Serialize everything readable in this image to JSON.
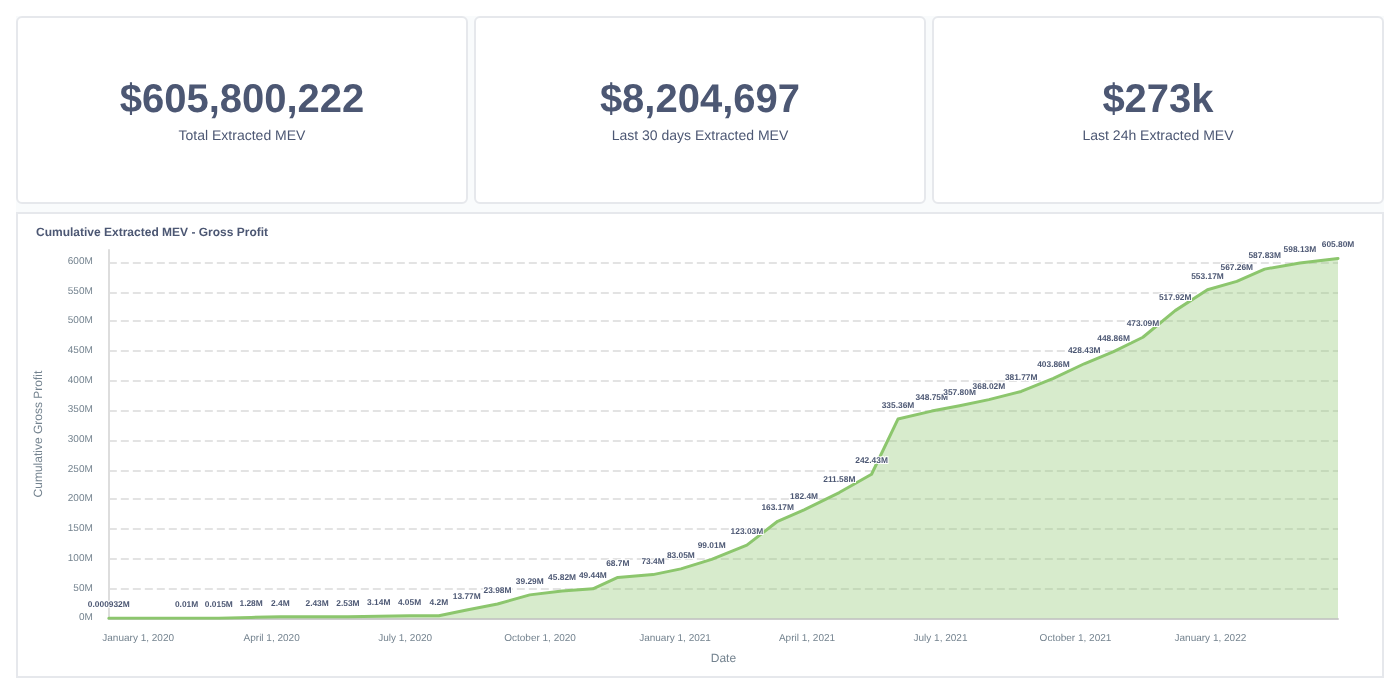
{
  "chart_data": [
    {
      "type": "other",
      "title": "$605,800,222",
      "subtitle": "Total Extracted MEV"
    },
    {
      "type": "other",
      "title": "$8,204,697",
      "subtitle": "Last 30 days Extracted MEV"
    },
    {
      "type": "other",
      "title": "$273k",
      "subtitle": "Last 24h Extracted MEV"
    },
    {
      "type": "area",
      "title": "Cumulative Extracted MEV - Gross Profit",
      "xlabel": "Date",
      "ylabel": "Cumulative Gross Profit",
      "x": [
        "2019-12-12",
        "2020-02-03",
        "2020-02-25",
        "2020-03-18",
        "2020-04-07",
        "2020-05-02",
        "2020-05-23",
        "2020-06-13",
        "2020-07-04",
        "2020-07-24",
        "2020-08-12",
        "2020-09-02",
        "2020-09-24",
        "2020-10-16",
        "2020-11-06",
        "2020-11-23",
        "2020-12-17",
        "2021-01-05",
        "2021-01-26",
        "2021-02-19",
        "2021-03-12",
        "2021-03-30",
        "2021-04-23",
        "2021-05-15",
        "2021-06-02",
        "2021-06-25",
        "2021-07-14",
        "2021-08-03",
        "2021-08-25",
        "2021-09-16",
        "2021-10-07",
        "2021-10-27",
        "2021-11-16",
        "2021-12-08",
        "2021-12-30",
        "2022-01-19",
        "2022-02-07",
        "2022-03-03",
        "2022-03-29"
      ],
      "series": [
        {
          "color": "#8cc66d",
          "values": [
            0.000932,
            0.01,
            0.015,
            1.28,
            2.4,
            2.43,
            2.53,
            3.14,
            4.05,
            4.2,
            13.77,
            23.98,
            39.29,
            45.82,
            49.44,
            68.7,
            73.4,
            83.05,
            99.01,
            123.03,
            163.17,
            182.4,
            211.58,
            242.43,
            335.36,
            348.75,
            357.8,
            368.02,
            381.77,
            403.86,
            428.43,
            448.86,
            473.09,
            517.92,
            553.17,
            567.26,
            587.83,
            598.13,
            605.8
          ],
          "value_labels": [
            "0.000932M",
            "0.01M",
            "0.015M",
            "1.28M",
            "2.4M",
            "2.43M",
            "2.53M",
            "3.14M",
            "4.05M",
            "4.2M",
            "13.77M",
            "23.98M",
            "39.29M",
            "45.82M",
            "49.44M",
            "68.7M",
            "73.4M",
            "83.05M",
            "99.01M",
            "123.03M",
            "163.17M",
            "182.4M",
            "211.58M",
            "242.43M",
            "335.36M",
            "348.75M",
            "357.80M",
            "368.02M",
            "381.77M",
            "403.86M",
            "428.43M",
            "448.86M",
            "473.09M",
            "517.92M",
            "553.17M",
            "567.26M",
            "587.83M",
            "598.13M",
            "605.80M"
          ]
        }
      ],
      "xlim": [
        "2019-12-12",
        "2022-03-29"
      ],
      "xticks": [
        {
          "value": "2020-01-01",
          "label": "January 1, 2020"
        },
        {
          "value": "2020-04-01",
          "label": "April 1, 2020"
        },
        {
          "value": "2020-07-01",
          "label": "July 1, 2020"
        },
        {
          "value": "2020-10-01",
          "label": "October 1, 2020"
        },
        {
          "value": "2021-01-01",
          "label": "January 1, 2021"
        },
        {
          "value": "2021-04-01",
          "label": "April 1, 2021"
        },
        {
          "value": "2021-07-01",
          "label": "July 1, 2021"
        },
        {
          "value": "2021-10-01",
          "label": "October 1, 2021"
        },
        {
          "value": "2022-01-01",
          "label": "January 1, 2022"
        }
      ],
      "ylim": [
        0,
        620
      ],
      "yticks": [
        {
          "value": 0,
          "label": "0M"
        },
        {
          "value": 50,
          "label": "50M"
        },
        {
          "value": 100,
          "label": "100M"
        },
        {
          "value": 150,
          "label": "150M"
        },
        {
          "value": 200,
          "label": "200M"
        },
        {
          "value": 250,
          "label": "250M"
        },
        {
          "value": 300,
          "label": "300M"
        },
        {
          "value": 350,
          "label": "350M"
        },
        {
          "value": 400,
          "label": "400M"
        },
        {
          "value": 450,
          "label": "450M"
        },
        {
          "value": 500,
          "label": "500M"
        },
        {
          "value": 550,
          "label": "550M"
        },
        {
          "value": 600,
          "label": "600M"
        }
      ],
      "grid": "y",
      "marker": "none",
      "line_style": "solid"
    }
  ]
}
